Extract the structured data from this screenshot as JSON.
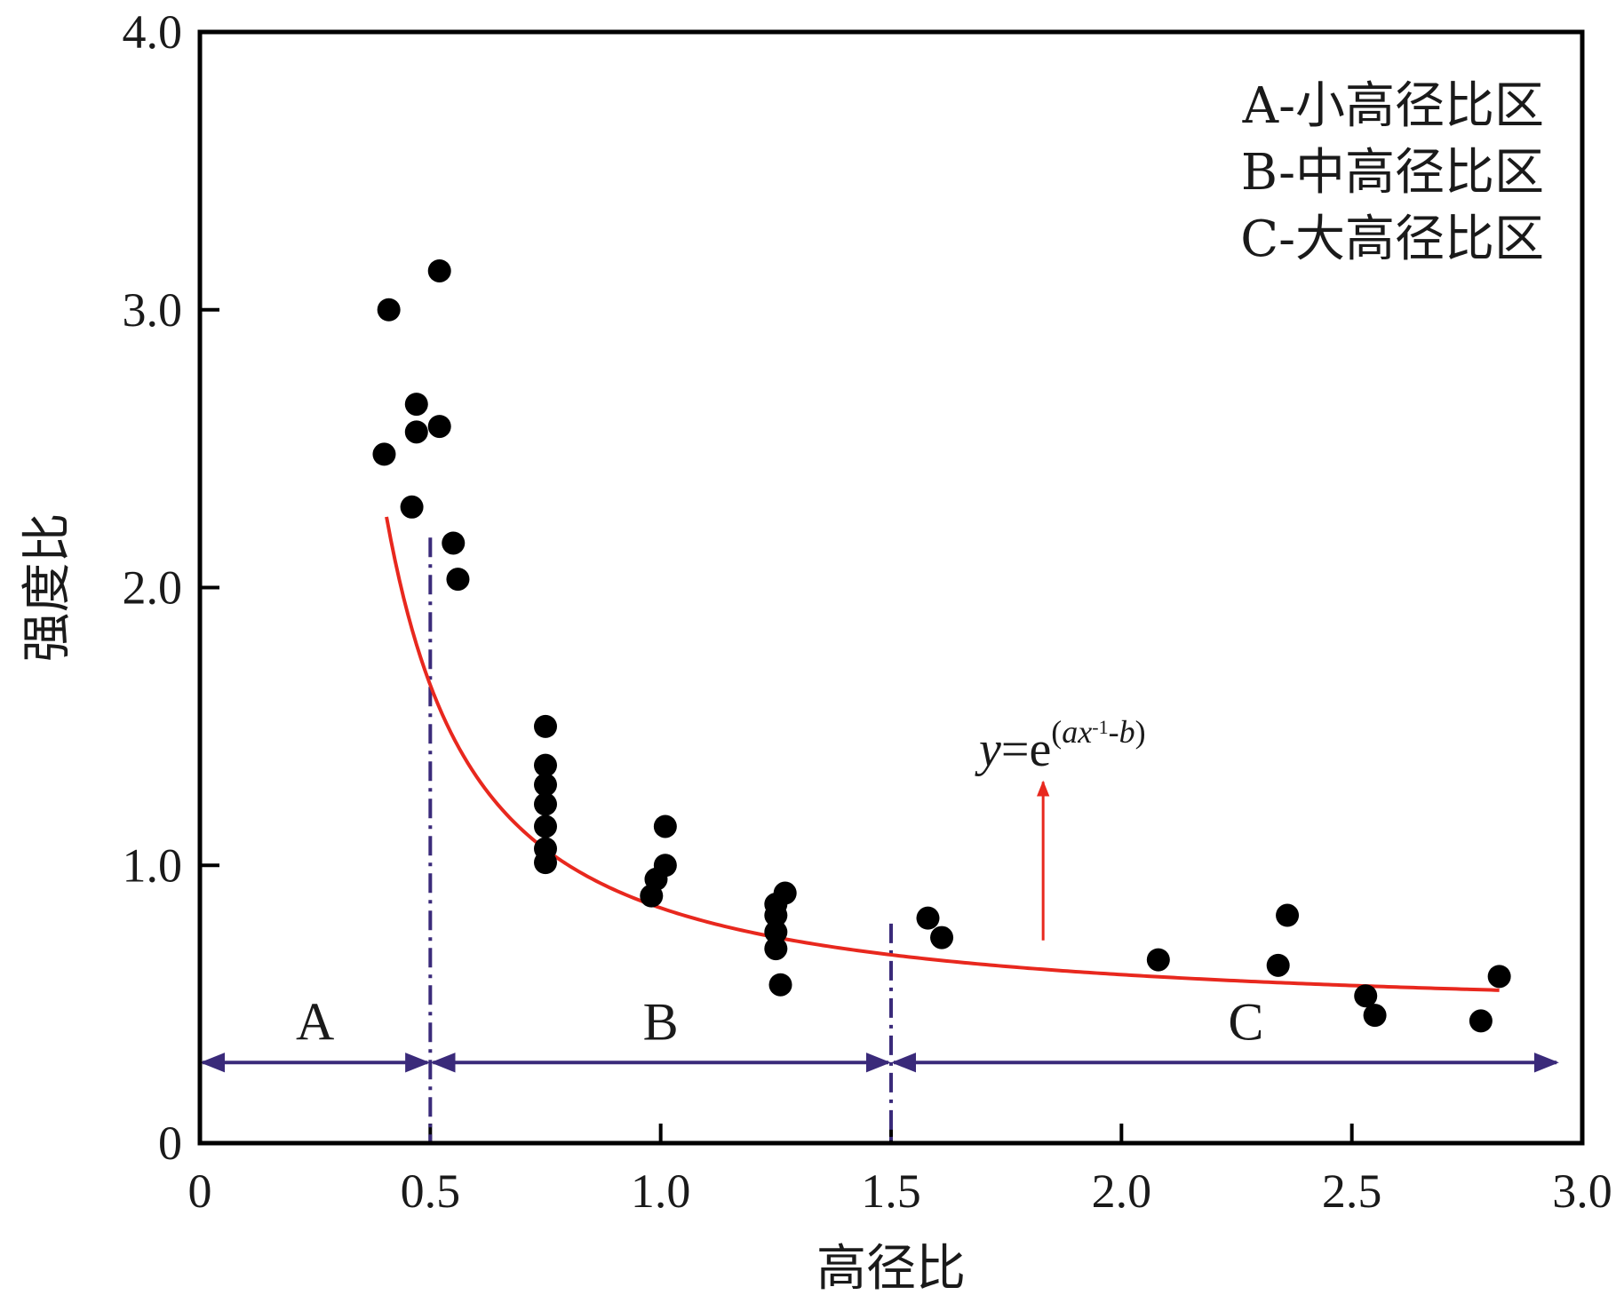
{
  "chart_data": {
    "type": "scatter",
    "xlabel": "高径比",
    "ylabel": "强度比",
    "xlim": [
      0,
      3.0
    ],
    "ylim": [
      0,
      4.0
    ],
    "x_ticks": [
      0,
      0.5,
      1.0,
      1.5,
      2.0,
      2.5,
      3.0
    ],
    "x_tick_labels": [
      "0",
      "0.5",
      "1.0",
      "1.5",
      "2.0",
      "2.5",
      "3.0"
    ],
    "y_ticks": [
      0,
      1.0,
      2.0,
      3.0,
      4.0
    ],
    "y_tick_labels": [
      "0",
      "1.0",
      "2.0",
      "3.0",
      "4.0"
    ],
    "grid": false,
    "legend_position": "top-right",
    "legend": [
      "A-小高径比区",
      "B-中高径比区",
      "C-大高径比区"
    ],
    "points": [
      {
        "x": 0.4,
        "y": 2.48
      },
      {
        "x": 0.41,
        "y": 3.0
      },
      {
        "x": 0.46,
        "y": 2.29
      },
      {
        "x": 0.47,
        "y": 2.56
      },
      {
        "x": 0.47,
        "y": 2.66
      },
      {
        "x": 0.52,
        "y": 3.14
      },
      {
        "x": 0.52,
        "y": 2.58
      },
      {
        "x": 0.55,
        "y": 2.16
      },
      {
        "x": 0.56,
        "y": 2.03
      },
      {
        "x": 0.75,
        "y": 1.5
      },
      {
        "x": 0.75,
        "y": 1.36
      },
      {
        "x": 0.75,
        "y": 1.29
      },
      {
        "x": 0.75,
        "y": 1.22
      },
      {
        "x": 0.75,
        "y": 1.14
      },
      {
        "x": 0.75,
        "y": 1.06
      },
      {
        "x": 0.75,
        "y": 1.01
      },
      {
        "x": 0.98,
        "y": 0.89
      },
      {
        "x": 0.99,
        "y": 0.95
      },
      {
        "x": 1.01,
        "y": 1.0
      },
      {
        "x": 1.01,
        "y": 1.14
      },
      {
        "x": 1.25,
        "y": 0.7
      },
      {
        "x": 1.25,
        "y": 0.76
      },
      {
        "x": 1.25,
        "y": 0.82
      },
      {
        "x": 1.25,
        "y": 0.86
      },
      {
        "x": 1.26,
        "y": 0.57
      },
      {
        "x": 1.27,
        "y": 0.9
      },
      {
        "x": 1.58,
        "y": 0.81
      },
      {
        "x": 1.61,
        "y": 0.74
      },
      {
        "x": 2.08,
        "y": 0.66
      },
      {
        "x": 2.34,
        "y": 0.64
      },
      {
        "x": 2.36,
        "y": 0.82
      },
      {
        "x": 2.53,
        "y": 0.53
      },
      {
        "x": 2.55,
        "y": 0.46
      },
      {
        "x": 2.78,
        "y": 0.44
      },
      {
        "x": 2.82,
        "y": 0.6
      }
    ],
    "fit_curve": {
      "a": 0.6667,
      "b": 0.8333,
      "x_range": [
        0.405,
        2.82
      ],
      "color": "#e8281e"
    },
    "equation": {
      "y": "y",
      "eq": "=e",
      "exp_open": "(",
      "a": "a",
      "x": "x",
      "exp_pow": "-1",
      "minus": "-",
      "b": "b",
      "exp_close": ")"
    },
    "zones": [
      {
        "label": "A",
        "x_start": 0,
        "x_end": 0.5
      },
      {
        "label": "B",
        "x_start": 0.5,
        "x_end": 1.5
      },
      {
        "label": "C",
        "x_start": 1.5,
        "x_end": 2.95
      }
    ],
    "zone_boundaries": [
      {
        "x": 0.5,
        "y_top": 2.18
      },
      {
        "x": 1.5,
        "y_top": 0.79
      }
    ],
    "zone_arrow_y": 0.29,
    "annotation_arrow": {
      "x": 1.83,
      "y_from": 0.73,
      "y_to": 1.3
    },
    "colors": {
      "points": "#000000",
      "curve": "#e8281e",
      "zones": "#3a2a7a",
      "axis": "#000000"
    }
  }
}
